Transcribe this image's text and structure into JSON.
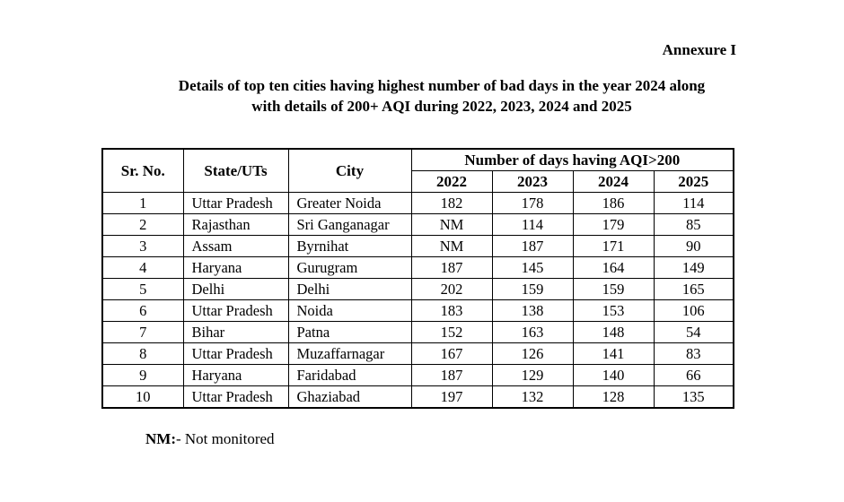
{
  "page": {
    "annexure_label": "Annexure I",
    "title_line1": "Details of top ten cities having highest number of bad days in the year 2024 along",
    "title_line2": "with details of 200+ AQI during 2022, 2023, 2024 and 2025",
    "footnote_term": "NM:",
    "footnote_text": "- Not monitored"
  },
  "table": {
    "header": {
      "sr_no": "Sr. No.",
      "state": "State/UTs",
      "city": "City",
      "group": "Number of days having AQI>200",
      "years": [
        "2022",
        "2023",
        "2024",
        "2025"
      ]
    },
    "rows": [
      {
        "sr": "1",
        "state": "Uttar Pradesh",
        "city": "Greater Noida",
        "values": [
          "182",
          "178",
          "186",
          "114"
        ]
      },
      {
        "sr": "2",
        "state": "Rajasthan",
        "city": "Sri Ganganagar",
        "values": [
          "NM",
          "114",
          "179",
          "85"
        ]
      },
      {
        "sr": "3",
        "state": "Assam",
        "city": "Byrnihat",
        "values": [
          "NM",
          "187",
          "171",
          "90"
        ]
      },
      {
        "sr": "4",
        "state": "Haryana",
        "city": "Gurugram",
        "values": [
          "187",
          "145",
          "164",
          "149"
        ]
      },
      {
        "sr": "5",
        "state": "Delhi",
        "city": "Delhi",
        "values": [
          "202",
          "159",
          "159",
          "165"
        ]
      },
      {
        "sr": "6",
        "state": "Uttar Pradesh",
        "city": "Noida",
        "values": [
          "183",
          "138",
          "153",
          "106"
        ]
      },
      {
        "sr": "7",
        "state": "Bihar",
        "city": "Patna",
        "values": [
          "152",
          "163",
          "148",
          "54"
        ]
      },
      {
        "sr": "8",
        "state": "Uttar Pradesh",
        "city": "Muzaffarnagar",
        "values": [
          "167",
          "126",
          "141",
          "83"
        ]
      },
      {
        "sr": "9",
        "state": "Haryana",
        "city": "Faridabad",
        "values": [
          "187",
          "129",
          "140",
          "66"
        ]
      },
      {
        "sr": "10",
        "state": "Uttar Pradesh",
        "city": "Ghaziabad",
        "values": [
          "197",
          "132",
          "128",
          "135"
        ]
      }
    ]
  }
}
